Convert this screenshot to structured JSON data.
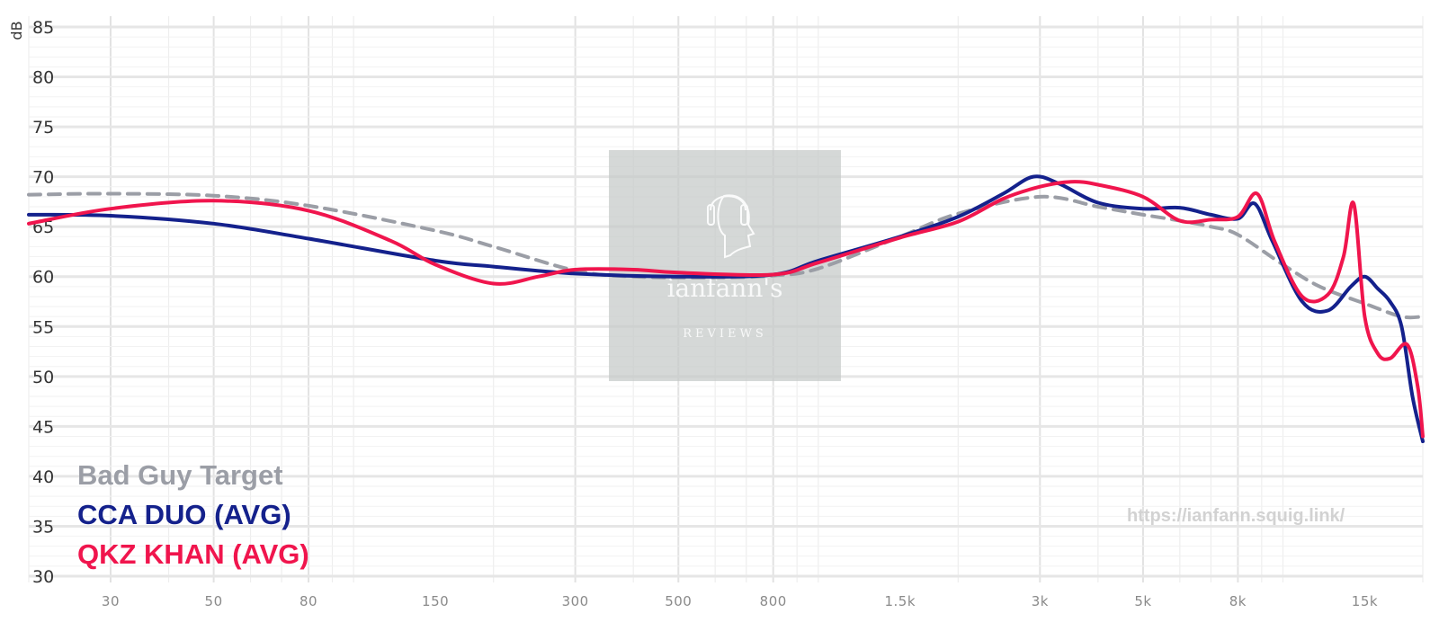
{
  "chart_data": {
    "type": "line",
    "xscale": "log",
    "xlim": [
      20,
      20000
    ],
    "ylim": [
      30,
      85
    ],
    "ylabel": "dB",
    "yticks": [
      30,
      35,
      40,
      45,
      50,
      55,
      60,
      65,
      70,
      75,
      80,
      85
    ],
    "xticks": [
      {
        "value": 30,
        "label": "30"
      },
      {
        "value": 50,
        "label": "50"
      },
      {
        "value": 80,
        "label": "80"
      },
      {
        "value": 150,
        "label": "150"
      },
      {
        "value": 300,
        "label": "300"
      },
      {
        "value": 500,
        "label": "500"
      },
      {
        "value": 800,
        "label": "800"
      },
      {
        "value": 1500,
        "label": "1.5k"
      },
      {
        "value": 3000,
        "label": "3k"
      },
      {
        "value": 5000,
        "label": "5k"
      },
      {
        "value": 8000,
        "label": "8k"
      },
      {
        "value": 15000,
        "label": "15k"
      }
    ],
    "grid": true,
    "legend_position": "bottom-left",
    "series": [
      {
        "name": "Bad Guy Target",
        "color": "#9b9ea6",
        "dash": true,
        "points": [
          [
            20,
            68.2
          ],
          [
            30,
            68.3
          ],
          [
            50,
            68.1
          ],
          [
            80,
            67.1
          ],
          [
            150,
            64.6
          ],
          [
            200,
            63.0
          ],
          [
            300,
            60.6
          ],
          [
            400,
            60.0
          ],
          [
            600,
            59.9
          ],
          [
            800,
            60.1
          ],
          [
            1000,
            60.8
          ],
          [
            1500,
            64.0
          ],
          [
            2000,
            66.3
          ],
          [
            3000,
            68.0
          ],
          [
            4000,
            67.0
          ],
          [
            5000,
            66.2
          ],
          [
            6000,
            65.6
          ],
          [
            7000,
            65.0
          ],
          [
            8000,
            64.2
          ],
          [
            10000,
            61.2
          ],
          [
            12000,
            59.0
          ],
          [
            15000,
            57.3
          ],
          [
            18000,
            56.0
          ],
          [
            20000,
            56.0
          ]
        ]
      },
      {
        "name": "CCA DUO (AVG)",
        "color": "#14218c",
        "dash": false,
        "points": [
          [
            20,
            66.2
          ],
          [
            30,
            66.1
          ],
          [
            50,
            65.3
          ],
          [
            80,
            63.8
          ],
          [
            150,
            61.6
          ],
          [
            200,
            61.0
          ],
          [
            300,
            60.3
          ],
          [
            500,
            60.0
          ],
          [
            800,
            60.2
          ],
          [
            1000,
            61.6
          ],
          [
            1500,
            64.0
          ],
          [
            2000,
            66.0
          ],
          [
            2500,
            68.3
          ],
          [
            2900,
            70.0
          ],
          [
            3300,
            69.3
          ],
          [
            4000,
            67.4
          ],
          [
            5000,
            66.8
          ],
          [
            6000,
            66.9
          ],
          [
            7000,
            66.2
          ],
          [
            8000,
            65.8
          ],
          [
            8700,
            67.3
          ],
          [
            9500,
            63.5
          ],
          [
            11000,
            57.5
          ],
          [
            12500,
            56.6
          ],
          [
            14000,
            59.0
          ],
          [
            15000,
            60.0
          ],
          [
            16000,
            58.8
          ],
          [
            17000,
            57.5
          ],
          [
            18000,
            55.0
          ],
          [
            19000,
            48.0
          ],
          [
            20000,
            43.5
          ]
        ]
      },
      {
        "name": "QKZ KHAN (AVG)",
        "color": "#f0154d",
        "dash": false,
        "points": [
          [
            20,
            65.3
          ],
          [
            30,
            66.8
          ],
          [
            50,
            67.6
          ],
          [
            80,
            66.6
          ],
          [
            120,
            63.6
          ],
          [
            150,
            61.2
          ],
          [
            200,
            59.3
          ],
          [
            250,
            60.0
          ],
          [
            300,
            60.7
          ],
          [
            400,
            60.7
          ],
          [
            500,
            60.4
          ],
          [
            800,
            60.2
          ],
          [
            1000,
            61.4
          ],
          [
            1500,
            63.9
          ],
          [
            2000,
            65.5
          ],
          [
            2500,
            67.8
          ],
          [
            3000,
            69.0
          ],
          [
            3500,
            69.5
          ],
          [
            4000,
            69.2
          ],
          [
            5000,
            68.0
          ],
          [
            6000,
            65.6
          ],
          [
            7000,
            65.7
          ],
          [
            8000,
            66.0
          ],
          [
            8800,
            68.3
          ],
          [
            9600,
            63.5
          ],
          [
            11000,
            58.0
          ],
          [
            12500,
            58.2
          ],
          [
            13500,
            62.0
          ],
          [
            14200,
            67.3
          ],
          [
            15000,
            56.0
          ],
          [
            16000,
            52.3
          ],
          [
            17000,
            51.8
          ],
          [
            18500,
            53.2
          ],
          [
            19500,
            49.0
          ],
          [
            20000,
            44.0
          ]
        ]
      }
    ]
  },
  "watermark": {
    "title": "ianfann's",
    "subtitle": "REVIEWS",
    "icon": "headphone-head-icon"
  },
  "source_url": "https://ianfann.squig.link/"
}
